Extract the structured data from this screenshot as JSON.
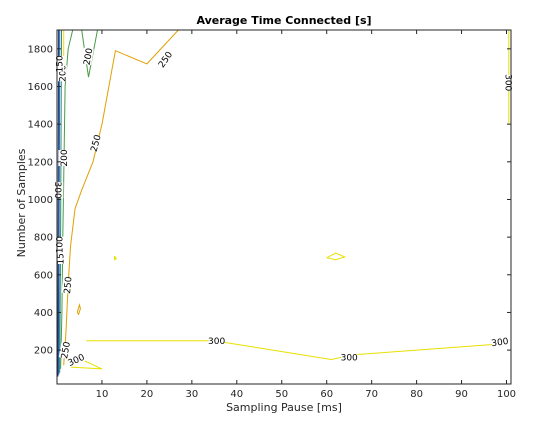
{
  "chart_data": {
    "type": "contour",
    "title": "Average Time Connected [s]",
    "xlabel": "Sampling Pause [ms]",
    "ylabel": "Number of Samples",
    "xlim": [
      0,
      101
    ],
    "ylim": [
      20,
      1900
    ],
    "xticks": [
      10,
      20,
      30,
      40,
      50,
      60,
      70,
      80,
      90,
      100
    ],
    "yticks": [
      200,
      400,
      600,
      800,
      1000,
      1200,
      1400,
      1600,
      1800
    ],
    "grid": false,
    "colors": {
      "300": "#e8e000",
      "250": "#e0a000",
      "200": "#4a9a48",
      "150": "#2a8a80",
      "100": "#1f6fa8",
      "50": "#222f7a"
    },
    "contours": [
      {
        "level": 300,
        "points": [
          [
            6.5,
            250
          ],
          [
            35,
            250
          ],
          [
            61,
            150
          ],
          [
            66,
            175
          ],
          [
            100,
            235
          ]
        ]
      },
      {
        "level": 300,
        "points": [
          [
            3,
            110
          ],
          [
            6,
            145
          ],
          [
            10,
            100
          ],
          [
            3,
            110
          ]
        ]
      },
      {
        "level": 300,
        "points": [
          [
            100.5,
            1900
          ],
          [
            100.5,
            1400
          ]
        ]
      },
      {
        "level": 300,
        "points": [
          [
            1.5,
            1700
          ],
          [
            1.5,
            1900
          ]
        ]
      },
      {
        "level": 300,
        "points": [
          [
            12.8,
            700
          ],
          [
            13.2,
            685
          ],
          [
            12.8,
            680
          ],
          [
            12.8,
            700
          ]
        ]
      },
      {
        "level": 300,
        "points": [
          [
            60,
            690
          ],
          [
            62,
            715
          ],
          [
            64,
            695
          ],
          [
            62,
            680
          ],
          [
            60,
            690
          ]
        ]
      },
      {
        "level": 250,
        "points": [
          [
            1.5,
            120
          ],
          [
            2,
            300
          ],
          [
            2.5,
            550
          ],
          [
            3,
            750
          ],
          [
            4,
            950
          ],
          [
            5.5,
            1050
          ],
          [
            8,
            1200
          ],
          [
            10,
            1400
          ],
          [
            13,
            1790
          ],
          [
            20,
            1720
          ],
          [
            27,
            1900
          ]
        ]
      },
      {
        "level": 250,
        "points": [
          [
            4.5,
            400
          ],
          [
            5,
            440
          ],
          [
            5.2,
            420
          ],
          [
            4.8,
            390
          ],
          [
            4.5,
            400
          ]
        ]
      },
      {
        "level": 200,
        "points": [
          [
            0.8,
            100
          ],
          [
            1.1,
            400
          ],
          [
            1.3,
            800
          ],
          [
            1.5,
            1100
          ],
          [
            1.8,
            1600
          ],
          [
            2.5,
            1800
          ],
          [
            3.5,
            1900
          ]
        ]
      },
      {
        "level": 200,
        "points": [
          [
            5.5,
            1900
          ],
          [
            7,
            1650
          ],
          [
            9,
            1900
          ]
        ]
      },
      {
        "level": 150,
        "points": [
          [
            0.6,
            80
          ],
          [
            0.7,
            400
          ],
          [
            0.8,
            800
          ],
          [
            0.9,
            1300
          ],
          [
            1.0,
            1900
          ]
        ]
      },
      {
        "level": 100,
        "points": [
          [
            0.4,
            70
          ],
          [
            0.45,
            500
          ],
          [
            0.5,
            900
          ],
          [
            0.55,
            1400
          ],
          [
            0.6,
            1900
          ]
        ]
      },
      {
        "level": 50,
        "points": [
          [
            0.2,
            60
          ],
          [
            0.25,
            600
          ],
          [
            0.3,
            1200
          ],
          [
            0.35,
            1900
          ]
        ]
      }
    ],
    "contour_labels": [
      {
        "text": "300",
        "x": 35.5,
        "y": 250,
        "angle": 0
      },
      {
        "text": "300",
        "x": 65,
        "y": 163,
        "angle": 0
      },
      {
        "text": "300",
        "x": 98.5,
        "y": 245,
        "angle": -8
      },
      {
        "text": "300",
        "x": 4.2,
        "y": 150,
        "angle": -25
      },
      {
        "text": "300",
        "x": 100.5,
        "y": 1620,
        "angle": 90
      },
      {
        "text": "300",
        "x": 0.3,
        "y": 1050,
        "angle": 90
      },
      {
        "text": "250",
        "x": 8.5,
        "y": 1300,
        "angle": -75
      },
      {
        "text": "250",
        "x": 24,
        "y": 1745,
        "angle": -55
      },
      {
        "text": "250",
        "x": 1.8,
        "y": 200,
        "angle": -80
      },
      {
        "text": "250",
        "x": 2.3,
        "y": 545,
        "angle": -85
      },
      {
        "text": "200",
        "x": 6.8,
        "y": 1760,
        "angle": -80
      },
      {
        "text": "200",
        "x": 1.4,
        "y": 1220,
        "angle": -90
      },
      {
        "text": "200",
        "x": 1.1,
        "y": 1670,
        "angle": -90
      },
      {
        "text": "150",
        "x": 0.7,
        "y": 700,
        "angle": -90
      },
      {
        "text": "100",
        "x": 0.5,
        "y": 760,
        "angle": -90
      },
      {
        "text": "150",
        "x": 0.5,
        "y": 1720,
        "angle": -90
      }
    ]
  }
}
